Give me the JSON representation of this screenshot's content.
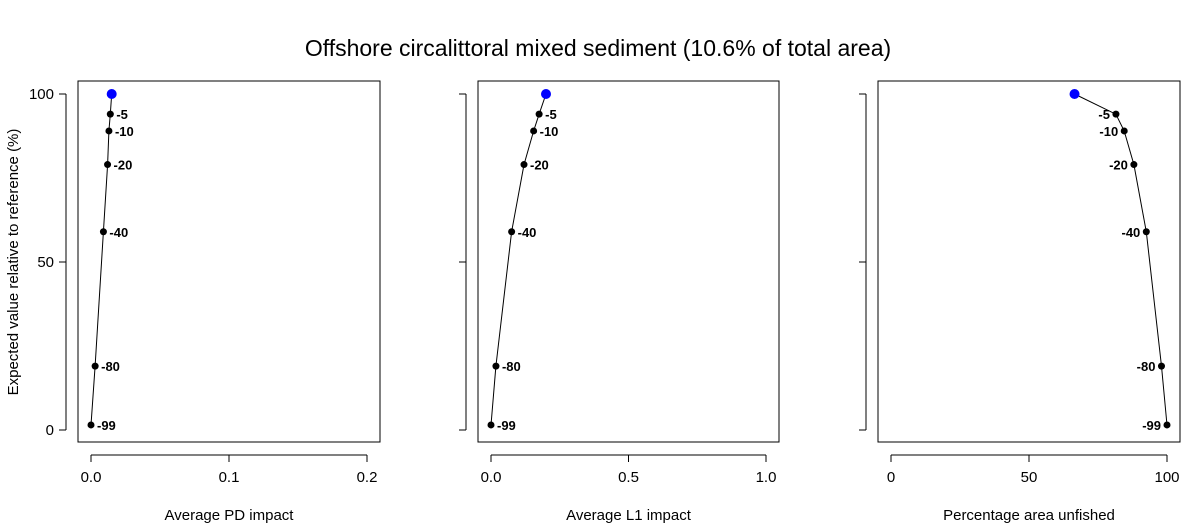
{
  "title": "Offshore circalittoral mixed sediment (10.6% of total area)",
  "ylabel": "Expected value relative to reference (%)",
  "y_ticks": [
    "0",
    "50",
    "100"
  ],
  "colors": {
    "reference_point": "#0000ff",
    "points": "#000000",
    "line": "#000000"
  },
  "chart_data": [
    {
      "type": "line",
      "xlabel": "Average PD impact",
      "xlim": [
        0,
        0.2
      ],
      "ylim": [
        0,
        100
      ],
      "x_ticks": [
        "0.0",
        "0.1",
        "0.2"
      ],
      "label_side": "right",
      "reference": {
        "x": 0.015,
        "y": 100
      },
      "points": [
        {
          "label": "-5",
          "x": 0.014,
          "y": 94
        },
        {
          "label": "-10",
          "x": 0.013,
          "y": 89
        },
        {
          "label": "-20",
          "x": 0.012,
          "y": 79
        },
        {
          "label": "-40",
          "x": 0.009,
          "y": 59
        },
        {
          "label": "-80",
          "x": 0.003,
          "y": 19
        },
        {
          "label": "-99",
          "x": 0.0,
          "y": 1.5
        }
      ]
    },
    {
      "type": "line",
      "xlabel": "Average L1 impact",
      "xlim": [
        0,
        1.0
      ],
      "ylim": [
        0,
        100
      ],
      "x_ticks": [
        "0.0",
        "0.5",
        "1.0"
      ],
      "label_side": "right",
      "reference": {
        "x": 0.2,
        "y": 100
      },
      "points": [
        {
          "label": "-5",
          "x": 0.175,
          "y": 94
        },
        {
          "label": "-10",
          "x": 0.155,
          "y": 89
        },
        {
          "label": "-20",
          "x": 0.12,
          "y": 79
        },
        {
          "label": "-40",
          "x": 0.075,
          "y": 59
        },
        {
          "label": "-80",
          "x": 0.018,
          "y": 19
        },
        {
          "label": "-99",
          "x": 0.0,
          "y": 1.5
        }
      ]
    },
    {
      "type": "line",
      "xlabel": "Percentage area unfished",
      "xlim": [
        0,
        100
      ],
      "ylim": [
        0,
        100
      ],
      "x_ticks": [
        "0",
        "50",
        "100"
      ],
      "label_side": "left",
      "reference": {
        "x": 66.5,
        "y": 100
      },
      "points": [
        {
          "label": "-5",
          "x": 81.5,
          "y": 94
        },
        {
          "label": "-10",
          "x": 84.5,
          "y": 89
        },
        {
          "label": "-20",
          "x": 88,
          "y": 79
        },
        {
          "label": "-40",
          "x": 92.5,
          "y": 59
        },
        {
          "label": "-80",
          "x": 98,
          "y": 19
        },
        {
          "label": "-99",
          "x": 100,
          "y": 1.5
        }
      ]
    }
  ]
}
